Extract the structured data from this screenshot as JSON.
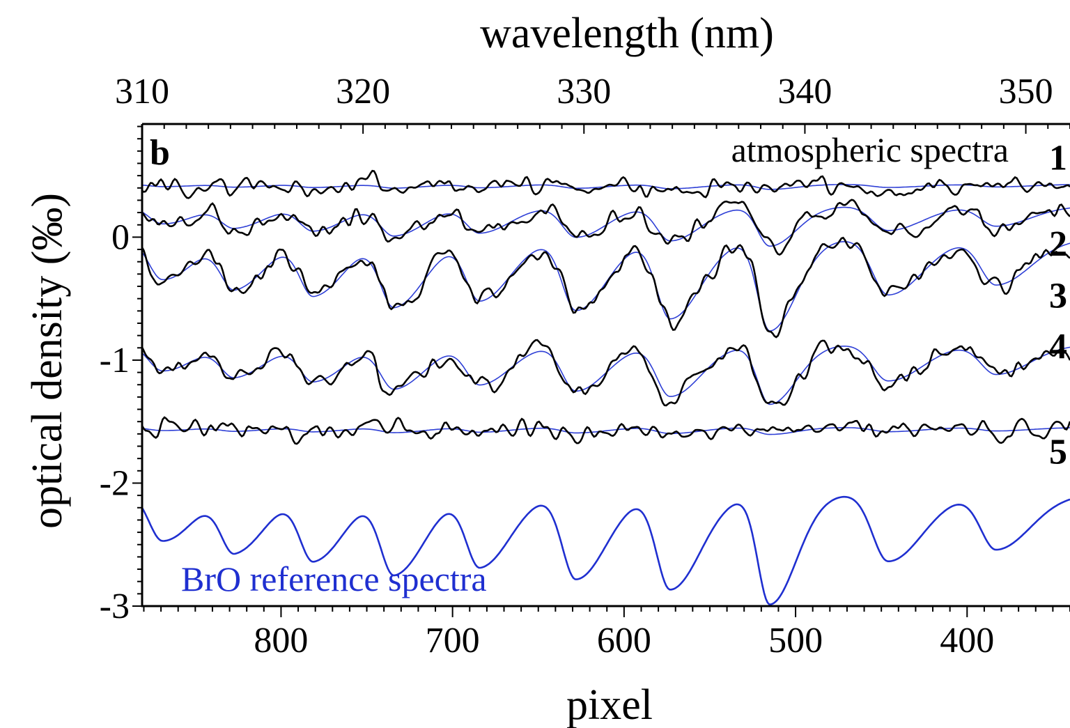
{
  "chart_data": {
    "type": "line",
    "panel_label": "b",
    "x_top": {
      "label": "wavelength (nm)",
      "tick_labels": [
        "310",
        "320",
        "330",
        "340",
        "350"
      ],
      "ticks": [
        310,
        320,
        330,
        340,
        350
      ],
      "range": [
        310,
        352
      ]
    },
    "x_bottom": {
      "label": "pixel",
      "tick_labels": [
        "800",
        "700",
        "600",
        "500",
        "400"
      ],
      "ticks": [
        800,
        700,
        600,
        500,
        400
      ],
      "range": [
        881,
        340
      ],
      "reversed": true
    },
    "y": {
      "label": "optical density (‰)",
      "tick_labels": [
        "0",
        "-1",
        "-2",
        "-3"
      ],
      "ticks": [
        0,
        -1,
        -2,
        -3
      ],
      "range": [
        -3.0,
        0.92
      ]
    },
    "annotations": {
      "atmospheric": "atmospheric spectra",
      "reference": "BrO reference spectra"
    },
    "curve_labels": [
      {
        "text": "1",
        "y": 0.65
      },
      {
        "text": "2",
        "y": -0.05
      },
      {
        "text": "3",
        "y": -0.47
      },
      {
        "text": "4",
        "y": -0.88
      },
      {
        "text": "5",
        "y": -1.74
      }
    ],
    "reference_spectrum": {
      "baseline": -2.0,
      "base_trend": [
        [
          881,
          -0.07
        ],
        [
          340,
          -0.09
        ]
      ],
      "absorption_bands": [
        {
          "pixel": 869,
          "depth": 0.4,
          "width": 8
        },
        {
          "pixel": 827,
          "depth": 0.48,
          "width": 8
        },
        {
          "pixel": 781,
          "depth": 0.55,
          "width": 8
        },
        {
          "pixel": 734,
          "depth": 0.66,
          "width": 8
        },
        {
          "pixel": 684,
          "depth": 0.6,
          "width": 8
        },
        {
          "pixel": 628,
          "depth": 0.7,
          "width": 8
        },
        {
          "pixel": 573,
          "depth": 0.78,
          "width": 8
        },
        {
          "pixel": 515,
          "depth": 0.9,
          "width": 7
        },
        {
          "pixel": 446,
          "depth": 0.55,
          "width": 9
        },
        {
          "pixel": 383,
          "depth": 0.45,
          "width": 9
        }
      ]
    },
    "series": [
      {
        "name": "1",
        "offset": 0.42,
        "bro_scale": 0.05
      },
      {
        "name": "2",
        "offset": 0.18,
        "bro_scale": 0.4
      },
      {
        "name": "3",
        "offset": -0.18,
        "bro_scale": 0.92
      },
      {
        "name": "4",
        "offset": -0.98,
        "bro_scale": 0.6
      },
      {
        "name": "5",
        "offset": -1.56,
        "bro_scale": 0.07
      }
    ],
    "colors": {
      "measured": "#000000",
      "fit": "#2e3fd6",
      "reference": "#1f2fd0",
      "annotation_blue": "#1f2fd0"
    },
    "grid": false
  }
}
